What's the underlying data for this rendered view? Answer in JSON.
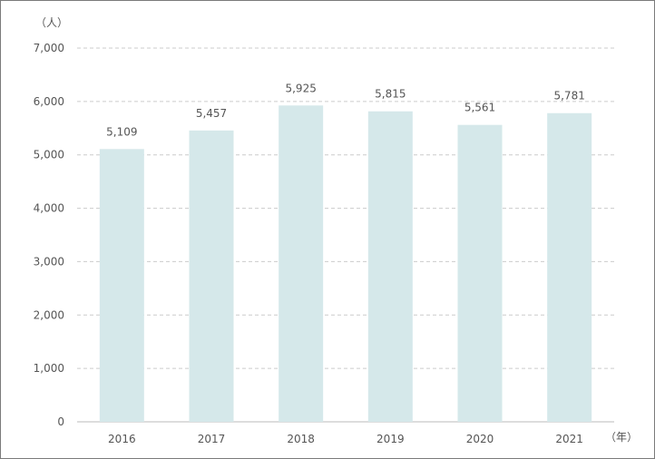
{
  "chart_data": {
    "type": "bar",
    "categories": [
      "2016",
      "2017",
      "2018",
      "2019",
      "2020",
      "2021"
    ],
    "values": [
      5109,
      5457,
      5925,
      5815,
      5561,
      5781
    ],
    "data_labels": [
      "5,109",
      "5,457",
      "5,925",
      "5,815",
      "5,561",
      "5,781"
    ],
    "y_unit": "（人）",
    "x_unit": "（年）",
    "ylim": [
      0,
      7000
    ],
    "y_ticks": [
      0,
      1000,
      2000,
      3000,
      4000,
      5000,
      6000,
      7000
    ],
    "y_tick_labels": [
      "0",
      "1,000",
      "2,000",
      "3,000",
      "4,000",
      "5,000",
      "6,000",
      "7,000"
    ],
    "grid": true,
    "bar_color": "#d5e8ea",
    "grid_color": "#cccccc",
    "axis_color": "#bbbbbb",
    "text_color": "#555555"
  }
}
